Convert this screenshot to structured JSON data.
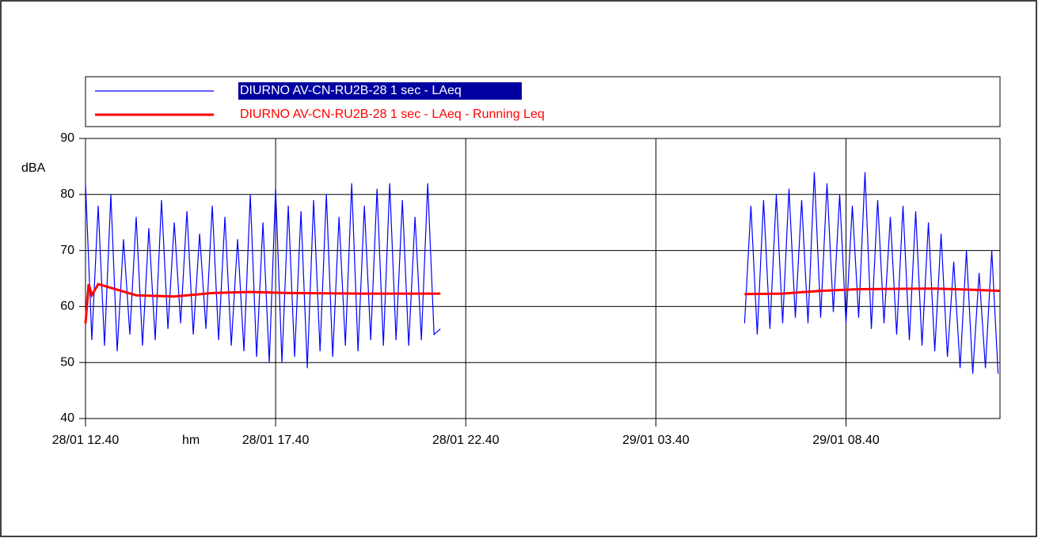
{
  "chart_data": {
    "type": "line",
    "x_label": "hm",
    "y_label": "dBA",
    "xlim": [
      "28/01 12.40",
      "29/01 12.43"
    ],
    "xticks": [
      "28/01 12.40",
      "28/01 17.40",
      "28/01 22.40",
      "29/01 03.40",
      "29/01 08.40"
    ],
    "ylim": [
      40,
      90
    ],
    "yticks": [
      40,
      50,
      60,
      70,
      80,
      90
    ],
    "grid": true,
    "series": [
      {
        "name": "DIURNO AV-CN-RU2B-28 1 sec - LAeq",
        "color": "#0000ff",
        "x": [
          "28/01 12.40",
          "28/01 12.50",
          "28/01 13.00",
          "28/01 13.10",
          "28/01 13.20",
          "28/01 13.30",
          "28/01 13.40",
          "28/01 13.50",
          "28/01 14.00",
          "28/01 14.10",
          "28/01 14.20",
          "28/01 14.30",
          "28/01 14.40",
          "28/01 14.50",
          "28/01 15.00",
          "28/01 15.10",
          "28/01 15.20",
          "28/01 15.30",
          "28/01 15.40",
          "28/01 15.50",
          "28/01 16.00",
          "28/01 16.10",
          "28/01 16.20",
          "28/01 16.30",
          "28/01 16.40",
          "28/01 16.50",
          "28/01 17.00",
          "28/01 17.10",
          "28/01 17.20",
          "28/01 17.30",
          "28/01 17.40",
          "28/01 17.50",
          "28/01 18.00",
          "28/01 18.10",
          "28/01 18.20",
          "28/01 18.30",
          "28/01 18.40",
          "28/01 18.50",
          "28/01 19.00",
          "28/01 19.10",
          "28/01 19.20",
          "28/01 19.30",
          "28/01 19.40",
          "28/01 19.50",
          "28/01 20.00",
          "28/01 20.10",
          "28/01 20.20",
          "28/01 20.30",
          "28/01 20.40",
          "28/01 20.50",
          "28/01 21.00",
          "28/01 21.10",
          "28/01 21.20",
          "28/01 21.30",
          "28/01 21.40",
          "28/01 21.50",
          "28/01 22.00",
          "28/01 22.10",
          "29/01 06.00",
          "29/01 06.10",
          "29/01 06.20",
          "29/01 06.30",
          "29/01 06.40",
          "29/01 06.50",
          "29/01 07.00",
          "29/01 07.10",
          "29/01 07.20",
          "29/01 07.30",
          "29/01 07.40",
          "29/01 07.50",
          "29/01 08.00",
          "29/01 08.10",
          "29/01 08.20",
          "29/01 08.30",
          "29/01 08.40",
          "29/01 08.50",
          "29/01 09.00",
          "29/01 09.10",
          "29/01 09.20",
          "29/01 09.30",
          "29/01 09.40",
          "29/01 09.50",
          "29/01 10.00",
          "29/01 10.10",
          "29/01 10.20",
          "29/01 10.30",
          "29/01 10.40",
          "29/01 10.50",
          "29/01 11.00",
          "29/01 11.10",
          "29/01 11.20",
          "29/01 11.30",
          "29/01 11.40",
          "29/01 11.50",
          "29/01 12.00",
          "29/01 12.10",
          "29/01 12.20",
          "29/01 12.30",
          "29/01 12.40"
        ],
        "values": [
          82,
          54,
          78,
          53,
          80,
          52,
          72,
          55,
          76,
          53,
          74,
          54,
          79,
          56,
          75,
          57,
          77,
          55,
          73,
          56,
          78,
          54,
          76,
          53,
          72,
          52,
          80,
          51,
          75,
          50,
          81,
          50,
          78,
          51,
          77,
          49,
          79,
          52,
          80,
          51,
          76,
          53,
          82,
          52,
          78,
          54,
          81,
          53,
          82,
          54,
          79,
          53,
          76,
          54,
          82,
          55,
          56,
          null,
          57,
          78,
          55,
          79,
          56,
          80,
          57,
          81,
          58,
          79,
          57,
          84,
          58,
          82,
          59,
          80,
          57,
          78,
          58,
          84,
          56,
          79,
          57,
          76,
          55,
          78,
          54,
          77,
          53,
          75,
          52,
          73,
          51,
          68,
          49,
          70,
          48,
          66,
          49,
          70,
          48
        ]
      },
      {
        "name": "DIURNO AV-CN-RU2B-28 1 sec - LAeq - Running Leq",
        "color": "#ff0000",
        "x": [
          "28/01 12.40",
          "28/01 12.45",
          "28/01 12.50",
          "28/01 13.00",
          "28/01 14.00",
          "28/01 15.00",
          "28/01 16.00",
          "28/01 17.00",
          "28/01 18.00",
          "28/01 20.00",
          "28/01 22.00",
          "28/01 22.10",
          "29/01 06.00",
          "29/01 07.00",
          "29/01 08.00",
          "29/01 09.00",
          "29/01 11.00",
          "29/01 12.00",
          "29/01 12.43"
        ],
        "values": [
          57,
          64,
          62,
          64,
          62,
          61.8,
          62.4,
          62.6,
          62.4,
          62.3,
          62.3,
          null,
          62.2,
          62.3,
          62.8,
          63.1,
          63.2,
          63,
          62.8
        ]
      }
    ]
  }
}
